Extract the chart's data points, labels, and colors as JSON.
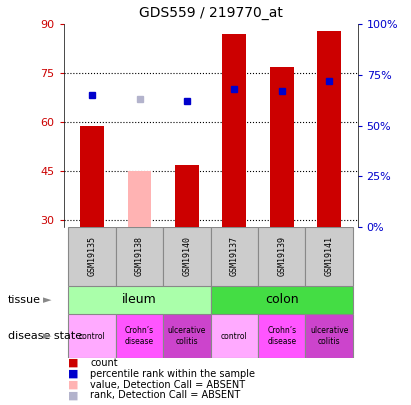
{
  "title": "GDS559 / 219770_at",
  "samples": [
    "GSM19135",
    "GSM19138",
    "GSM19140",
    "GSM19137",
    "GSM19139",
    "GSM19141"
  ],
  "bar_values": [
    59,
    45,
    47,
    87,
    77,
    88
  ],
  "bar_absent": [
    false,
    true,
    false,
    false,
    false,
    false
  ],
  "percentile_ranks": [
    65,
    63,
    62,
    68,
    67,
    72
  ],
  "percentile_absent": [
    false,
    true,
    false,
    false,
    false,
    false
  ],
  "ylim_left": [
    28,
    90
  ],
  "ylim_right": [
    0,
    100
  ],
  "yticks_left": [
    30,
    45,
    60,
    75,
    90
  ],
  "yticks_right": [
    0,
    25,
    50,
    75,
    100
  ],
  "yticklabels_right": [
    "0%",
    "25%",
    "50%",
    "75%",
    "100%"
  ],
  "bar_color_present": "#cc0000",
  "bar_color_absent": "#ffb3b3",
  "rank_color_present": "#0000cc",
  "rank_color_absent": "#b3b3cc",
  "tissue_groups": [
    {
      "label": "ileum",
      "span": [
        0,
        3
      ],
      "color": "#aaffaa"
    },
    {
      "label": "colon",
      "span": [
        3,
        6
      ],
      "color": "#44dd44"
    }
  ],
  "disease_colors": [
    "#ffaaff",
    "#ff55ff",
    "#cc44cc",
    "#ffaaff",
    "#ff55ff",
    "#cc44cc"
  ],
  "disease_labels": [
    "control",
    "Crohn’s\ndisease",
    "ulcerative\ncolitis",
    "control",
    "Crohn’s\ndisease",
    "ulcerative\ncolitis"
  ],
  "legend_items": [
    {
      "color": "#cc0000",
      "label": "count"
    },
    {
      "color": "#0000cc",
      "label": "percentile rank within the sample"
    },
    {
      "color": "#ffb3b3",
      "label": "value, Detection Call = ABSENT"
    },
    {
      "color": "#b3b3cc",
      "label": "rank, Detection Call = ABSENT"
    }
  ]
}
